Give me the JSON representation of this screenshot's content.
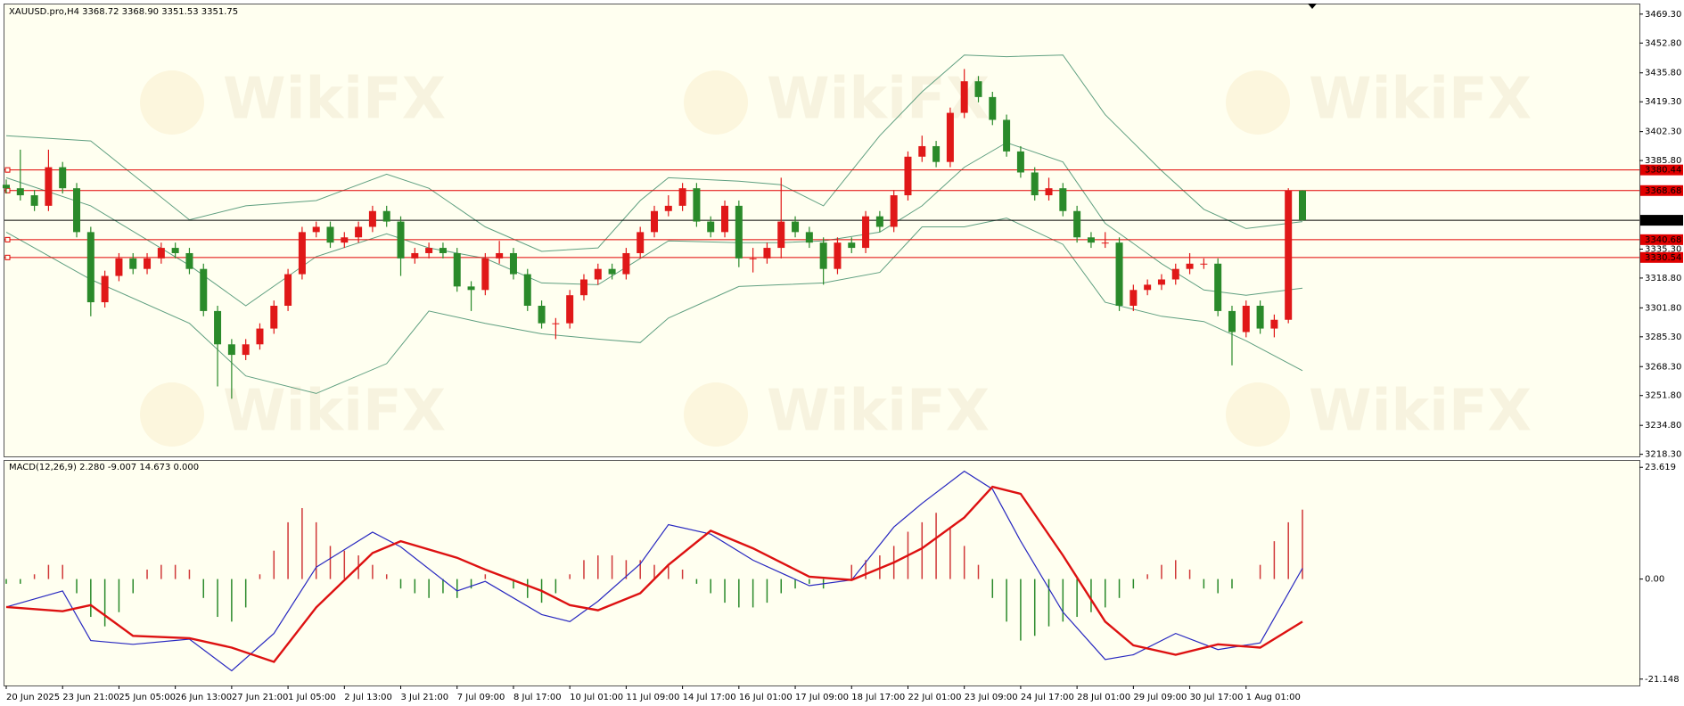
{
  "chart_data": {
    "type": "candlestick",
    "title": "XAUUSD.pro,H4  3368.72 3368.90 3351.53 3351.75",
    "watermark": "WikiFX",
    "categories": [
      "20 Jun 2025",
      null,
      null,
      null,
      "23 Jun 21:00",
      null,
      null,
      null,
      "25 Jun 05:00",
      null,
      null,
      null,
      "26 Jun 13:00",
      null,
      null,
      null,
      "27 Jun 21:00",
      null,
      null,
      null,
      "1 Jul 05:00",
      null,
      null,
      null,
      "2 Jul 13:00",
      null,
      null,
      null,
      "3 Jul 21:00",
      null,
      null,
      null,
      "7 Jul 09:00",
      null,
      null,
      null,
      "8 Jul 17:00",
      null,
      null,
      null,
      "10 Jul 01:00",
      null,
      null,
      null,
      "11 Jul 09:00",
      null,
      null,
      null,
      "14 Jul 17:00",
      null,
      null,
      null,
      "16 Jul 01:00",
      null,
      null,
      null,
      "17 Jul 09:00",
      null,
      null,
      null,
      "18 Jul 17:00",
      null,
      null,
      null,
      "22 Jul 01:00",
      null,
      null,
      null,
      "23 Jul 09:00",
      null,
      null,
      null,
      "24 Jul 17:00",
      null,
      null,
      null,
      "28 Jul 01:00",
      null,
      null,
      null,
      "29 Jul 09:00",
      null,
      null,
      null,
      "30 Jul 17:00",
      null,
      null,
      null,
      "1 Aug 01:00",
      null,
      null,
      null,
      null
    ],
    "candles": [
      [
        3372,
        3375,
        3367,
        3370
      ],
      [
        3370,
        3392,
        3363,
        3366
      ],
      [
        3366,
        3369,
        3357,
        3360
      ],
      [
        3360,
        3392,
        3357,
        3382
      ],
      [
        3382,
        3385,
        3367,
        3370
      ],
      [
        3370,
        3373,
        3342,
        3345
      ],
      [
        3345,
        3348,
        3297,
        3305
      ],
      [
        3305,
        3323,
        3302,
        3320
      ],
      [
        3320,
        3333,
        3317,
        3330
      ],
      [
        3330,
        3333,
        3321,
        3324
      ],
      [
        3324,
        3333,
        3321,
        3330
      ],
      [
        3330,
        3339,
        3327,
        3336
      ],
      [
        3336,
        3339,
        3330,
        3333
      ],
      [
        3333,
        3336,
        3321,
        3324
      ],
      [
        3324,
        3327,
        3297,
        3300
      ],
      [
        3300,
        3303,
        3257,
        3281
      ],
      [
        3281,
        3284,
        3250,
        3275
      ],
      [
        3275,
        3284,
        3272,
        3281
      ],
      [
        3281,
        3293,
        3278,
        3290
      ],
      [
        3290,
        3306,
        3287,
        3303
      ],
      [
        3303,
        3324,
        3300,
        3321
      ],
      [
        3321,
        3348,
        3318,
        3345
      ],
      [
        3345,
        3351,
        3342,
        3348
      ],
      [
        3348,
        3351,
        3336,
        3339
      ],
      [
        3339,
        3345,
        3336,
        3342
      ],
      [
        3342,
        3351,
        3339,
        3348
      ],
      [
        3348,
        3360,
        3345,
        3357
      ],
      [
        3357,
        3360,
        3348,
        3351
      ],
      [
        3351,
        3354,
        3320,
        3330
      ],
      [
        3330,
        3336,
        3327,
        3333
      ],
      [
        3333,
        3339,
        3330,
        3336
      ],
      [
        3336,
        3339,
        3330,
        3333
      ],
      [
        3333,
        3336,
        3311,
        3314
      ],
      [
        3314,
        3317,
        3300,
        3312
      ],
      [
        3312,
        3333,
        3309,
        3330
      ],
      [
        3330,
        3340,
        3327,
        3333
      ],
      [
        3333,
        3336,
        3318,
        3321
      ],
      [
        3321,
        3324,
        3300,
        3303
      ],
      [
        3303,
        3306,
        3290,
        3293
      ],
      [
        3293,
        3296,
        3284,
        3293
      ],
      [
        3293,
        3312,
        3290,
        3309
      ],
      [
        3309,
        3321,
        3306,
        3318
      ],
      [
        3318,
        3327,
        3315,
        3324
      ],
      [
        3324,
        3327,
        3318,
        3321
      ],
      [
        3321,
        3336,
        3318,
        3333
      ],
      [
        3333,
        3348,
        3330,
        3345
      ],
      [
        3345,
        3360,
        3342,
        3357
      ],
      [
        3357,
        3366,
        3354,
        3360
      ],
      [
        3360,
        3373,
        3357,
        3370
      ],
      [
        3370,
        3373,
        3348,
        3351
      ],
      [
        3351,
        3354,
        3342,
        3345
      ],
      [
        3345,
        3363,
        3342,
        3360
      ],
      [
        3360,
        3363,
        3325,
        3330
      ],
      [
        3330,
        3336,
        3322,
        3330
      ],
      [
        3330,
        3339,
        3327,
        3336
      ],
      [
        3336,
        3376,
        3330,
        3351
      ],
      [
        3351,
        3354,
        3342,
        3345
      ],
      [
        3345,
        3348,
        3336,
        3339
      ],
      [
        3339,
        3342,
        3315,
        3324
      ],
      [
        3324,
        3342,
        3321,
        3339
      ],
      [
        3339,
        3342,
        3333,
        3336
      ],
      [
        3336,
        3357,
        3333,
        3354
      ],
      [
        3354,
        3357,
        3345,
        3348
      ],
      [
        3348,
        3369,
        3345,
        3366
      ],
      [
        3366,
        3391,
        3363,
        3388
      ],
      [
        3388,
        3400,
        3385,
        3394
      ],
      [
        3394,
        3397,
        3382,
        3385
      ],
      [
        3385,
        3416,
        3382,
        3413
      ],
      [
        3413,
        3438,
        3410,
        3431
      ],
      [
        3431,
        3434,
        3419,
        3422
      ],
      [
        3422,
        3425,
        3406,
        3409
      ],
      [
        3409,
        3412,
        3388,
        3391
      ],
      [
        3391,
        3394,
        3376,
        3379
      ],
      [
        3379,
        3382,
        3363,
        3366
      ],
      [
        3366,
        3376,
        3363,
        3370
      ],
      [
        3370,
        3373,
        3354,
        3357
      ],
      [
        3357,
        3360,
        3339,
        3342
      ],
      [
        3342,
        3345,
        3336,
        3339
      ],
      [
        3339,
        3345,
        3336,
        3339
      ],
      [
        3339,
        3342,
        3300,
        3303
      ],
      [
        3303,
        3315,
        3300,
        3312
      ],
      [
        3312,
        3318,
        3309,
        3315
      ],
      [
        3315,
        3321,
        3312,
        3318
      ],
      [
        3318,
        3327,
        3315,
        3324
      ],
      [
        3324,
        3333,
        3321,
        3327
      ],
      [
        3327,
        3330,
        3324,
        3327
      ],
      [
        3327,
        3330,
        3297,
        3300
      ],
      [
        3300,
        3303,
        3269,
        3288
      ],
      [
        3288,
        3306,
        3285,
        3303
      ],
      [
        3303,
        3306,
        3287,
        3290
      ],
      [
        3290,
        3298,
        3285,
        3295
      ],
      [
        3295,
        3370,
        3293,
        3368.72
      ],
      [
        3368.72,
        3368.9,
        3351.53,
        3351.75
      ]
    ],
    "up_color": "#e01818",
    "down_color": "#2a8a2a",
    "ylim": [
      3217.1,
      3474.8
    ],
    "yticks": [
      {
        "value": 3469.3,
        "label": "3469.30"
      },
      {
        "value": 3452.8,
        "label": "3452.80"
      },
      {
        "value": 3435.8,
        "label": "3435.80"
      },
      {
        "value": 3419.3,
        "label": "3419.30"
      },
      {
        "value": 3402.3,
        "label": "3402.30"
      },
      {
        "value": 3385.8,
        "label": "3385.80"
      },
      {
        "value": 3335.3,
        "label": "3335.30"
      },
      {
        "value": 3318.8,
        "label": "3318.80"
      },
      {
        "value": 3301.8,
        "label": "3301.80"
      },
      {
        "value": 3285.3,
        "label": "3285.30"
      },
      {
        "value": 3268.3,
        "label": "3268.30"
      },
      {
        "value": 3251.8,
        "label": "3251.80"
      },
      {
        "value": 3234.8,
        "label": "3234.80"
      },
      {
        "value": 3218.3,
        "label": "3218.30"
      }
    ],
    "bands": {
      "color": "#5f9f80",
      "x": [
        0,
        6,
        13,
        17,
        22,
        27,
        30,
        34,
        38,
        42,
        45,
        47,
        52,
        55,
        58,
        62,
        65,
        68,
        71,
        75,
        78,
        82,
        85,
        88,
        92
      ],
      "upper": [
        3400,
        3397,
        3352,
        3360,
        3363,
        3378,
        3370,
        3348,
        3334,
        3336,
        3363,
        3376,
        3374,
        3372,
        3360,
        3400,
        3425,
        3446,
        3445,
        3446,
        3412,
        3380,
        3358,
        3347,
        3351
      ],
      "middle": [
        3376,
        3360,
        3326,
        3303,
        3331,
        3344,
        3336,
        3330,
        3316,
        3315,
        3330,
        3340,
        3339,
        3339,
        3340,
        3345,
        3360,
        3382,
        3396,
        3385,
        3350,
        3327,
        3312,
        3309,
        3313
      ],
      "lower": [
        3345,
        3318,
        3293,
        3263,
        3253,
        3270,
        3300,
        3293,
        3287,
        3284,
        3282,
        3296,
        3314,
        3315,
        3316,
        3322,
        3348,
        3348,
        3353,
        3338,
        3305,
        3297,
        3294,
        3283,
        3266
      ]
    },
    "levels": [
      {
        "value": 3380.44,
        "color": "#e00000"
      },
      {
        "value": 3368.68,
        "color": "#e00000"
      },
      {
        "value": 3351.75,
        "color": "#000000"
      },
      {
        "value": 3340.68,
        "color": "#e00000"
      },
      {
        "value": 3330.54,
        "color": "#e00000"
      }
    ],
    "indicator": {
      "type": "macd",
      "title": "MACD(12,26,9) 2.280 -9.007 14.673 0.000",
      "ylim": [
        -22.5,
        24.98
      ],
      "yticks": [
        23.619,
        {
          "value": 0,
          "label": "0.00"
        },
        -21.148
      ],
      "histogram": {
        "pos_color": "#d03838",
        "neg_color": "#2a8a2a",
        "values": [
          -1,
          -1,
          1,
          3,
          3,
          -3,
          -8,
          -10,
          -7,
          -3,
          2,
          3,
          3,
          2,
          -4,
          -8,
          -9,
          -6,
          1,
          6,
          12,
          15,
          12,
          7,
          6,
          5,
          3,
          1,
          -2,
          -3,
          -4,
          -3,
          -4,
          -2,
          1,
          0,
          -2,
          -4,
          -5,
          -3,
          1,
          4,
          5,
          5,
          4,
          4,
          3,
          3,
          2,
          -1,
          -3,
          -5,
          -6,
          -6,
          -5,
          -3,
          -2,
          -1,
          -2,
          0,
          3,
          4,
          5,
          7,
          10,
          12,
          14,
          11,
          7,
          3,
          -4,
          -9,
          -13,
          -12,
          -10,
          -9,
          -8,
          -7,
          -6,
          -4,
          -2,
          1,
          3,
          4,
          2,
          -2,
          -3,
          -2,
          0,
          3,
          8,
          12,
          14.673
        ]
      },
      "main": {
        "color": "#2828c0",
        "x": [
          0,
          4,
          6,
          9,
          13,
          16,
          19,
          22,
          26,
          28,
          32,
          34,
          38,
          40,
          42,
          45,
          47,
          50,
          53,
          57,
          60,
          63,
          65,
          68,
          70,
          72,
          75,
          78,
          80,
          83,
          86,
          89,
          92
        ],
        "values": [
          -5.9,
          -2.5,
          -13,
          -13.8,
          -12.7,
          -19.4,
          -11.5,
          2.5,
          9.9,
          6.8,
          -2.5,
          -0.5,
          -7.5,
          -9,
          -4.7,
          3.2,
          11.5,
          9.5,
          4,
          -1.4,
          -0.2,
          11,
          16,
          22.8,
          19,
          8,
          -7,
          -17,
          -16,
          -11.5,
          -14.9,
          -13.5,
          2.28
        ]
      },
      "signal": {
        "color": "#dd1111",
        "x": [
          0,
          4,
          6,
          9,
          13,
          16,
          19,
          22,
          26,
          28,
          32,
          34,
          38,
          40,
          42,
          45,
          47,
          50,
          53,
          57,
          60,
          63,
          65,
          68,
          70,
          72,
          75,
          78,
          80,
          83,
          86,
          89,
          92
        ],
        "values": [
          -5.9,
          -6.8,
          -5.5,
          -12,
          -12.5,
          -14.5,
          -17.5,
          -6,
          5.5,
          8,
          4.5,
          2,
          -2.5,
          -5.5,
          -6.6,
          -3,
          3,
          10.2,
          6.5,
          0.5,
          -0.2,
          3.5,
          6.5,
          13,
          19.5,
          18,
          5,
          -9,
          -14,
          -16,
          -13.8,
          -14.5,
          -9.007
        ]
      }
    }
  }
}
